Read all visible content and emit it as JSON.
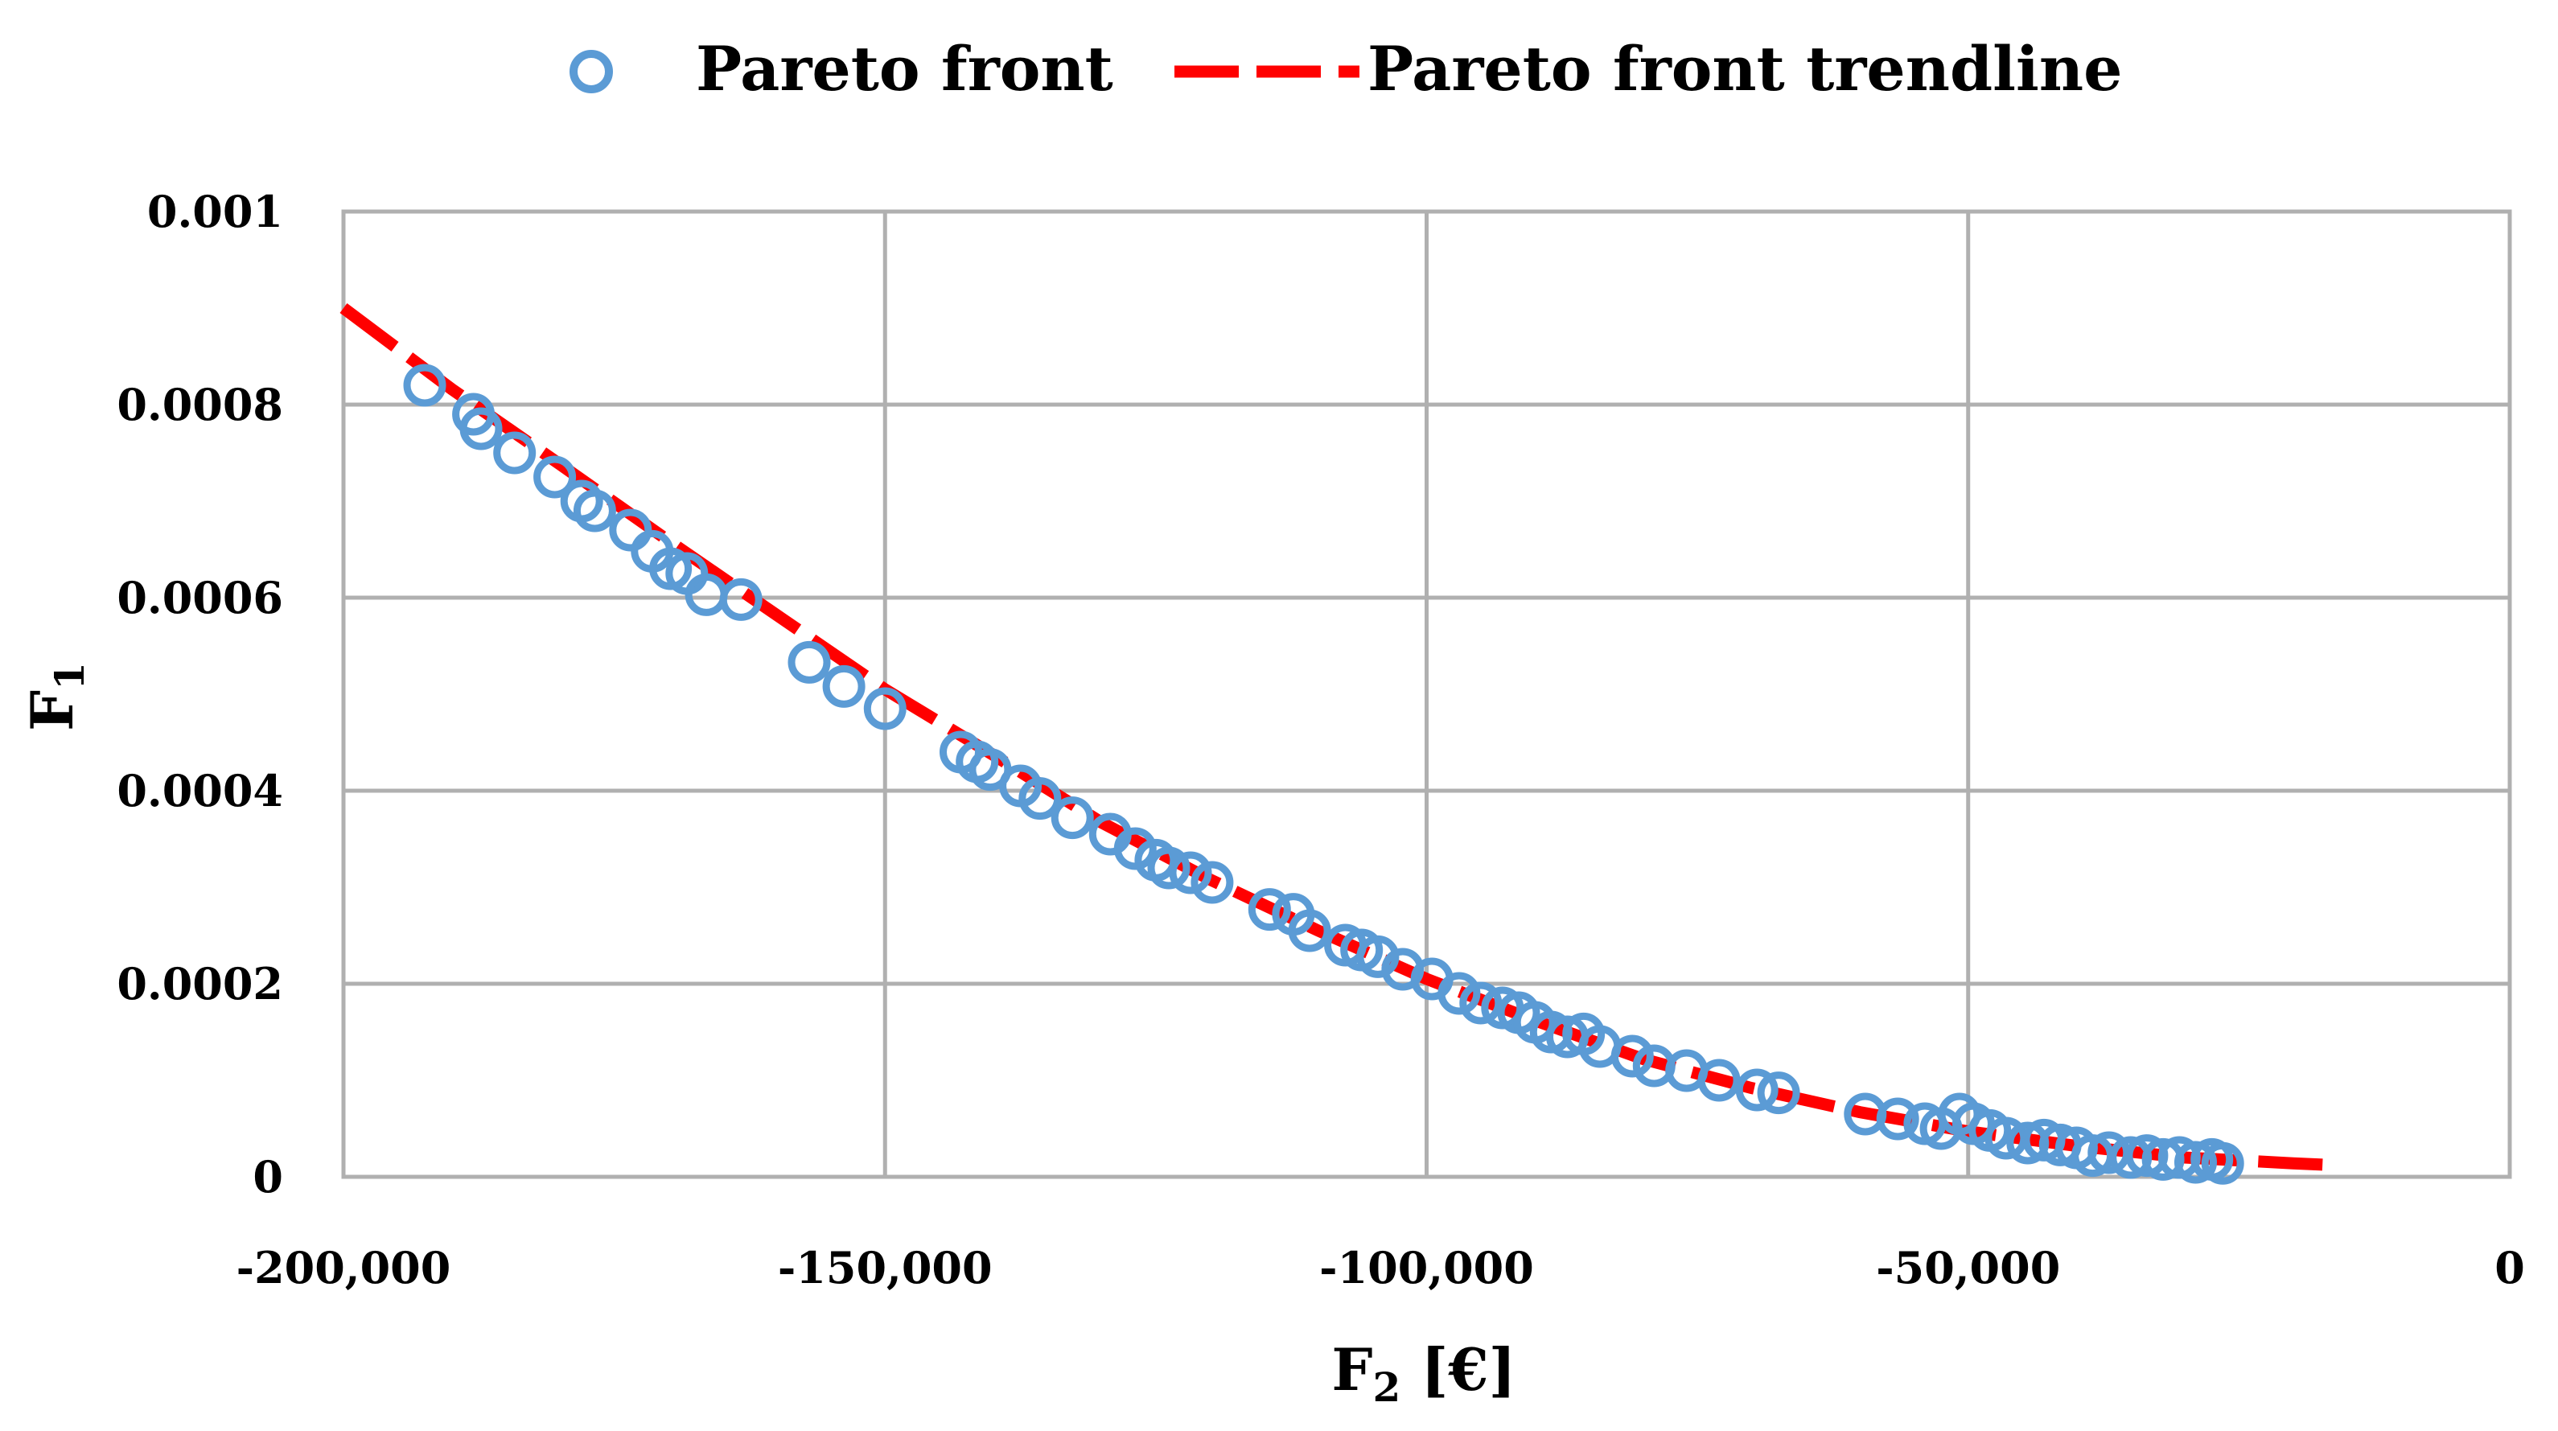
{
  "chart_data": {
    "type": "scatter",
    "xlabel": "F",
    "xlabel_sub": "2",
    "xlabel_unit": " [€]",
    "ylabel": "F",
    "ylabel_sub": "1",
    "xlim": [
      -200000,
      0
    ],
    "ylim": [
      0,
      0.001
    ],
    "x_ticks": [
      -200000,
      -150000,
      -100000,
      -50000,
      0
    ],
    "x_tick_labels": [
      "-200,000",
      "-150,000",
      "-100,000",
      "-50,000",
      "0"
    ],
    "y_ticks": [
      0,
      0.0002,
      0.0004,
      0.0006,
      0.0008,
      0.001
    ],
    "y_tick_labels": [
      "0",
      "0.0002",
      "0.0004",
      "0.0006",
      "0.0008",
      "0.001"
    ],
    "grid": true,
    "legend_position": "top-center",
    "series": [
      {
        "name": "Pareto front",
        "kind": "scatter",
        "marker": "open-circle",
        "color": "#5b9bd5",
        "points": [
          [
            -192500,
            0.00082
          ],
          [
            -188000,
            0.00079
          ],
          [
            -187300,
            0.000775
          ],
          [
            -184200,
            0.00075
          ],
          [
            -180500,
            0.000725
          ],
          [
            -178000,
            0.0007
          ],
          [
            -176800,
            0.00069
          ],
          [
            -173500,
            0.00067
          ],
          [
            -171500,
            0.000648
          ],
          [
            -169800,
            0.00063
          ],
          [
            -168300,
            0.000625
          ],
          [
            -166500,
            0.000603
          ],
          [
            -163300,
            0.000598
          ],
          [
            -157000,
            0.000533
          ],
          [
            -153800,
            0.000508
          ],
          [
            -150000,
            0.000485
          ],
          [
            -143000,
            0.00044
          ],
          [
            -141500,
            0.00043
          ],
          [
            -140300,
            0.000422
          ],
          [
            -137500,
            0.000405
          ],
          [
            -135700,
            0.000392
          ],
          [
            -132700,
            0.000372
          ],
          [
            -129200,
            0.000355
          ],
          [
            -126900,
            0.00034
          ],
          [
            -125000,
            0.000328
          ],
          [
            -123800,
            0.00032
          ],
          [
            -121800,
            0.000315
          ],
          [
            -119800,
            0.000305
          ],
          [
            -114500,
            0.000277
          ],
          [
            -112300,
            0.000272
          ],
          [
            -110800,
            0.000255
          ],
          [
            -107500,
            0.00024
          ],
          [
            -106000,
            0.000235
          ],
          [
            -104500,
            0.000228
          ],
          [
            -102200,
            0.000215
          ],
          [
            -99500,
            0.000205
          ],
          [
            -97000,
            0.00019
          ],
          [
            -95000,
            0.00018
          ],
          [
            -93000,
            0.000175
          ],
          [
            -91500,
            0.00017
          ],
          [
            -90000,
            0.00016
          ],
          [
            -88500,
            0.00015
          ],
          [
            -87000,
            0.000145
          ],
          [
            -85500,
            0.000148
          ],
          [
            -84000,
            0.000135
          ],
          [
            -81000,
            0.000125
          ],
          [
            -79000,
            0.000115
          ],
          [
            -76000,
            0.00011
          ],
          [
            -73000,
            0.0001
          ],
          [
            -69500,
            9e-05
          ],
          [
            -67500,
            8.7e-05
          ],
          [
            -59500,
            6.5e-05
          ],
          [
            -56500,
            6e-05
          ],
          [
            -54000,
            5.5e-05
          ],
          [
            -52500,
            5e-05
          ],
          [
            -50800,
            6.5e-05
          ],
          [
            -49500,
            5.5e-05
          ],
          [
            -48000,
            4.8e-05
          ],
          [
            -46500,
            4e-05
          ],
          [
            -44500,
            3.5e-05
          ],
          [
            -43000,
            3.8e-05
          ],
          [
            -41500,
            3.3e-05
          ],
          [
            -40000,
            3e-05
          ],
          [
            -38500,
            2.2e-05
          ],
          [
            -37000,
            2.5e-05
          ],
          [
            -35000,
            2e-05
          ],
          [
            -33500,
            2.2e-05
          ],
          [
            -32000,
            1.8e-05
          ],
          [
            -30500,
            2e-05
          ],
          [
            -29000,
            1.5e-05
          ],
          [
            -27500,
            1.8e-05
          ],
          [
            -26500,
            1.4e-05
          ]
        ]
      },
      {
        "name": "Pareto front trendline",
        "kind": "line",
        "line_style": "dashed",
        "color": "#ff0000",
        "points": [
          [
            -200000,
            0.0009
          ],
          [
            -190000,
            0.000816
          ],
          [
            -180000,
            0.000738
          ],
          [
            -170000,
            0.000659
          ],
          [
            -160000,
            0.000582
          ],
          [
            -150000,
            0.000505
          ],
          [
            -140000,
            0.000437
          ],
          [
            -130000,
            0.000367
          ],
          [
            -120000,
            0.000308
          ],
          [
            -110000,
            0.000255
          ],
          [
            -100000,
            0.000205
          ],
          [
            -90000,
            0.000162
          ],
          [
            -80000,
            0.000122
          ],
          [
            -70000,
            9.2e-05
          ],
          [
            -60000,
            6.7e-05
          ],
          [
            -50000,
            4.7e-05
          ],
          [
            -40000,
            3.2e-05
          ],
          [
            -30000,
            2e-05
          ],
          [
            -20000,
            1.4e-05
          ],
          [
            -16000,
            1.2e-05
          ]
        ]
      }
    ]
  }
}
